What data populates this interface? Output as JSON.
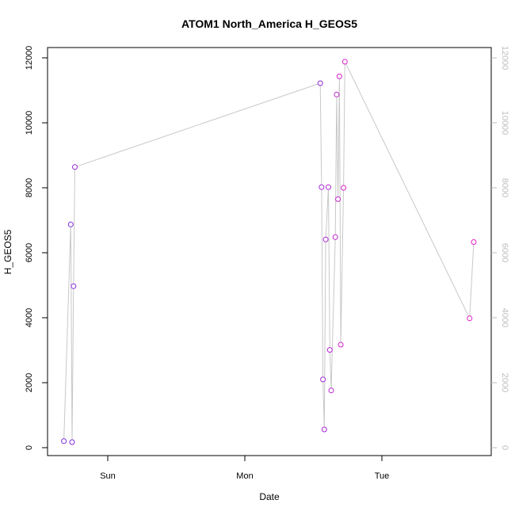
{
  "chart_data": {
    "type": "line",
    "title": "ATOM1 North_America H_GEOS5",
    "xlabel": "Date",
    "ylabel": "H_GEOS5",
    "x_ticks": [
      "Sun",
      "Mon",
      "Tue"
    ],
    "y_ticks": [
      "0",
      "2000",
      "4000",
      "6000",
      "8000",
      "10000",
      "12000"
    ],
    "y_ticks_right": [
      "0",
      "2000",
      "4000",
      "6000",
      "8000",
      "10000",
      "12000"
    ],
    "ylim": [
      0,
      12000
    ],
    "xlim_days": [
      "Sat",
      "Tue"
    ],
    "line_color": "#c8c8c8",
    "right_axis_color": "#bebebe",
    "point_color_start": "#7a2bdc",
    "point_color_end": "#e81fc4",
    "series": [
      {
        "x_day_offset": [
          -0.32,
          -0.27,
          -0.26,
          -0.25,
          -0.24,
          1.55,
          1.56,
          1.57,
          1.58,
          1.59,
          1.61,
          1.62,
          1.63,
          1.66,
          1.67,
          1.68,
          1.69,
          1.7,
          1.72,
          1.73,
          2.64,
          2.67
        ],
        "values": [
          200,
          6870,
          170,
          4970,
          8640,
          11220,
          8020,
          2100,
          560,
          6410,
          8020,
          3010,
          1760,
          6480,
          10870,
          7650,
          11430,
          3170,
          8000,
          11880,
          3980,
          6330
        ]
      }
    ],
    "notes": ""
  }
}
